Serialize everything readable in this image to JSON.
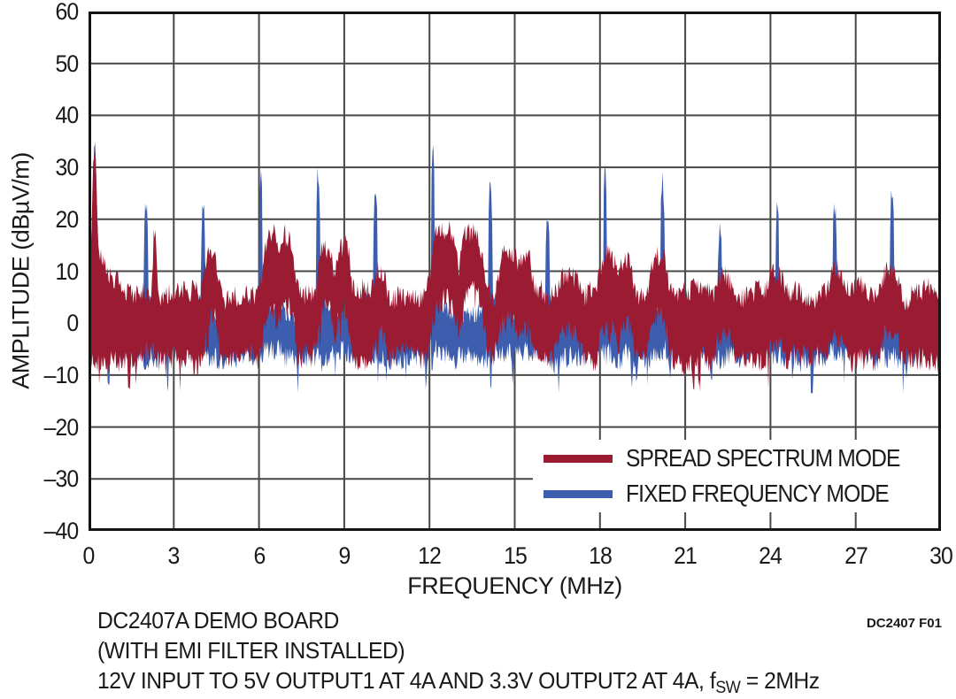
{
  "figure": {
    "note": "DC2407 F01",
    "caption": {
      "line1": "DC2407A DEMO BOARD",
      "line2": "(WITH EMI FILTER INSTALLED)",
      "line3_pre": "12V INPUT TO 5V OUTPUT1 AT 4A AND 3.3V OUTPUT2 AT 4A, f",
      "line3_sub": "SW",
      "line3_post": " = 2MHz"
    }
  },
  "y_axis": {
    "label": "AMPLITUDE (dBµV/m)",
    "ticks": [
      "60",
      "50",
      "40",
      "30",
      "20",
      "10",
      "0",
      "–10",
      "–20",
      "–30",
      "–40"
    ]
  },
  "x_axis": {
    "label": "FREQUENCY (MHz)",
    "ticks": [
      "0",
      "3",
      "6",
      "9",
      "12",
      "15",
      "18",
      "21",
      "24",
      "27",
      "30"
    ]
  },
  "legend": {
    "items": [
      {
        "label": "SPREAD SPECTRUM MODE",
        "color": "#9B1B33"
      },
      {
        "label": "FIXED FREQUENCY MODE",
        "color": "#3D5EAF"
      }
    ]
  },
  "chart_data": {
    "type": "area",
    "subtype": "emi-spectrum-noise-bands",
    "title": "",
    "xlabel": "FREQUENCY (MHz)",
    "ylabel": "AMPLITUDE (dBµV/m)",
    "xlim": [
      0,
      30
    ],
    "ylim": [
      -40,
      60
    ],
    "x_ticks": [
      0,
      3,
      6,
      9,
      12,
      15,
      18,
      21,
      24,
      27,
      30
    ],
    "y_ticks": [
      60,
      50,
      40,
      30,
      20,
      10,
      0,
      -10,
      -20,
      -30,
      -40
    ],
    "grid": true,
    "grid_color": "#474747",
    "border_color": "#141414",
    "legend_position": "bottom-right",
    "series": [
      {
        "name": "SPREAD SPECTRUM MODE",
        "color": "#9B1B33",
        "band": "noise",
        "floor_top_dBuVm": 5.8,
        "floor_bottom_dBuVm": -7.5,
        "start_transient": {
          "center_mhz": 0.22,
          "peak_dBuVm": 35,
          "sigma_mhz": 0.12,
          "tail_peak_dB": 13.5,
          "tail_decay_mhz": 0.3
        },
        "humps_center_width_peak": [
          [
            2.33,
            0.08,
            17.8
          ],
          [
            4.32,
            0.26,
            13.2
          ],
          [
            6.45,
            0.34,
            15.8
          ],
          [
            6.98,
            0.3,
            16.4
          ],
          [
            8.35,
            0.3,
            15.2
          ],
          [
            8.97,
            0.27,
            14.4
          ],
          [
            10.28,
            0.22,
            9.8
          ],
          [
            12.55,
            0.5,
            17.4
          ],
          [
            13.5,
            0.45,
            17.8
          ],
          [
            14.8,
            0.38,
            13.0
          ],
          [
            15.35,
            0.28,
            12.6
          ],
          [
            16.9,
            0.45,
            9.6
          ],
          [
            18.3,
            0.32,
            12.6
          ],
          [
            18.9,
            0.28,
            12.2
          ],
          [
            20.05,
            0.34,
            13.4
          ],
          [
            22.35,
            0.28,
            9.8
          ],
          [
            24.2,
            0.26,
            9.2
          ],
          [
            26.35,
            0.3,
            10.2
          ],
          [
            28.2,
            0.32,
            10.4
          ]
        ]
      },
      {
        "name": "FIXED FREQUENCY MODE",
        "color": "#3D5EAF",
        "band": "noise",
        "floor_top_dBuVm": 2.2,
        "floor_bottom_dBuVm": -6.3,
        "start_transient": {
          "center_mhz": 0.22,
          "peak_dBuVm": 33,
          "sigma_mhz": 0.13,
          "tail_peak_dB": 9.5,
          "tail_decay_mhz": 0.27
        },
        "harmonic_spikes_mhz_dBuVm": [
          [
            2.02,
            23.5
          ],
          [
            4.04,
            23.0
          ],
          [
            6.06,
            28.5
          ],
          [
            8.08,
            30.0
          ],
          [
            10.1,
            26.3
          ],
          [
            12.12,
            34.0
          ],
          [
            14.14,
            27.3
          ],
          [
            16.16,
            20.8
          ],
          [
            18.18,
            30.0
          ],
          [
            20.2,
            26.8
          ],
          [
            22.22,
            19.0
          ],
          [
            24.24,
            21.8
          ],
          [
            26.26,
            22.3
          ],
          [
            28.28,
            26.0
          ]
        ]
      }
    ],
    "render": {
      "step_mhz": 0.03,
      "seed_spread": 20407,
      "seed_fixed": 2407,
      "slow_amp_dB": 1.6,
      "fast_amp_dB": 2.1,
      "band_depth_dB": 12.5,
      "depth_jitter_dB": 4.5,
      "dip_probability": 0.025,
      "dip_extra_dB": 4,
      "hump_exponent": 4,
      "spike_halfwidth_mhz": 0.07,
      "near_spike_bump_dB": 2.6,
      "near_spike_sigma_mhz": 0.32,
      "top_clamp_spread": 35.4,
      "top_clamp_fixed": 34.2,
      "bottom_clamp": -13.5
    }
  }
}
